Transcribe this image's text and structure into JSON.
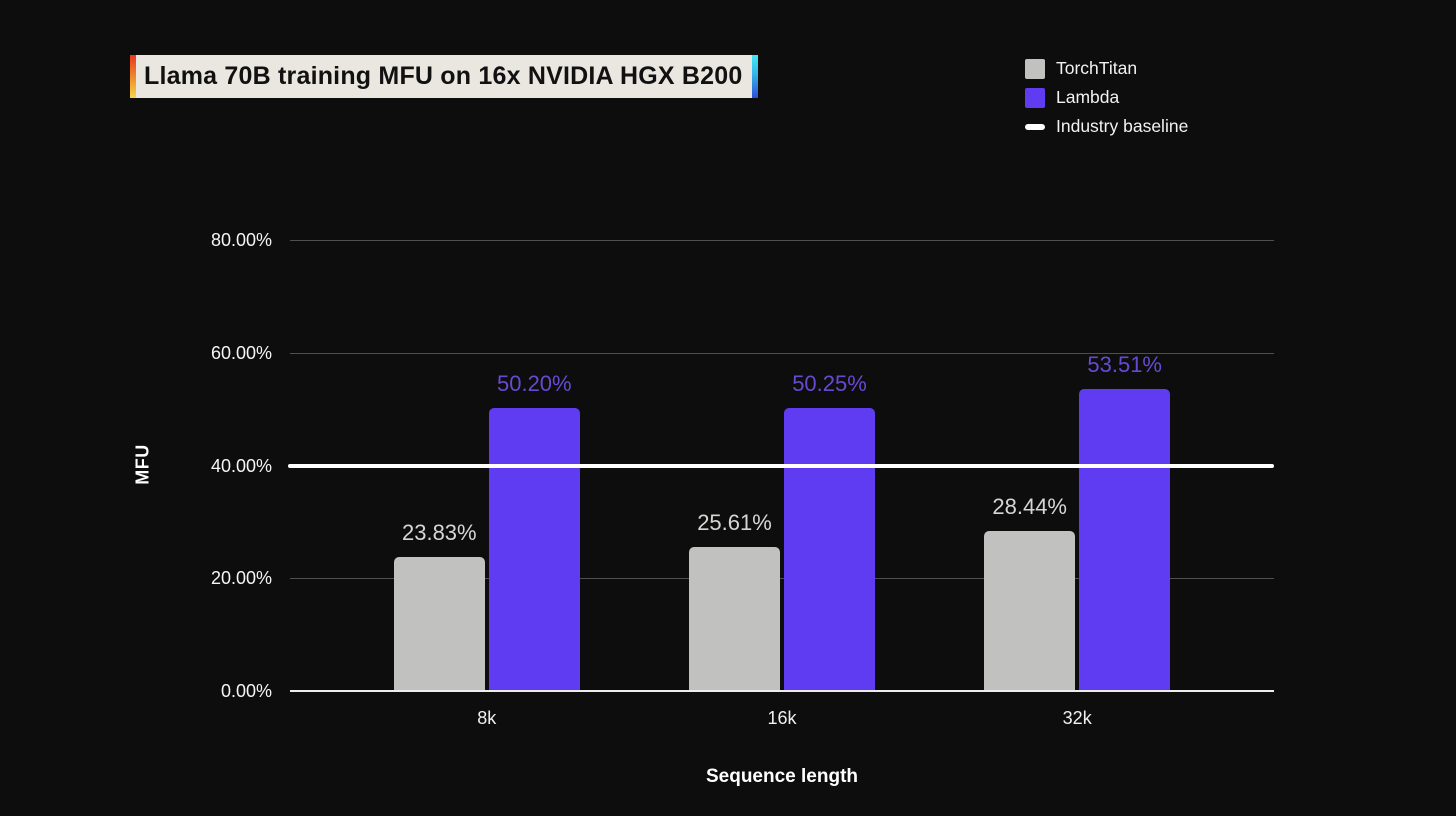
{
  "page": {
    "background": "#0d0d0d"
  },
  "title": {
    "text": "Llama 70B training MFU on 16x NVIDIA HGX B200"
  },
  "legend": {
    "position": "top-right",
    "items": [
      {
        "label": "TorchTitan",
        "swatch": "square",
        "color": "#c1c1bf"
      },
      {
        "label": "Lambda",
        "swatch": "square",
        "color": "#5f3cf2"
      },
      {
        "label": "Industry baseline",
        "swatch": "line",
        "color": "#ffffff"
      }
    ]
  },
  "chart_data": {
    "type": "bar",
    "title": "Llama 70B training MFU on 16x NVIDIA HGX B200",
    "categories": [
      "8k",
      "16k",
      "32k"
    ],
    "series": [
      {
        "name": "TorchTitan",
        "color": "#c1c1bf",
        "label_color": "#d6d6d4",
        "values": [
          23.83,
          25.61,
          28.44
        ],
        "value_labels": [
          "23.83%",
          "25.61%",
          "28.44%"
        ]
      },
      {
        "name": "Lambda",
        "color": "#5f3cf2",
        "label_color": "#664ad2",
        "values": [
          50.2,
          50.25,
          53.51
        ],
        "value_labels": [
          "50.20%",
          "50.25%",
          "53.51%"
        ]
      }
    ],
    "baseline": {
      "name": "Industry baseline",
      "value": 40,
      "color": "#ffffff"
    },
    "xlabel": "Sequence length",
    "ylabel": "MFU",
    "ylim": [
      0,
      80
    ],
    "yticks": [
      {
        "label": "0.00%",
        "value": 0
      },
      {
        "label": "20.00%",
        "value": 20
      },
      {
        "label": "40.00%",
        "value": 40
      },
      {
        "label": "60.00%",
        "value": 60
      },
      {
        "label": "80.00%",
        "value": 80
      }
    ],
    "grid": true,
    "legend_position": "top-right"
  }
}
